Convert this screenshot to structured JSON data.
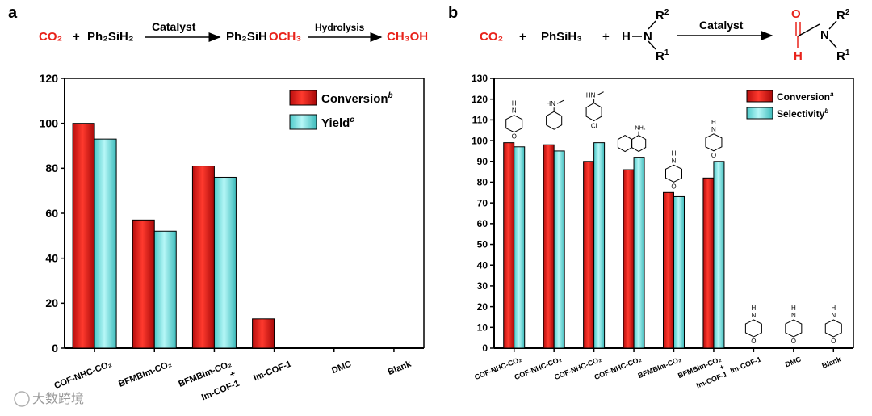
{
  "panels": {
    "a": {
      "letter": "a",
      "scheme": {
        "co2": "CO₂",
        "plus": "+",
        "silane": "Ph₂SiH₂",
        "arrow1_label": "Catalyst",
        "product_black": "Ph₂SiH",
        "product_red": "OCH₃",
        "arrow2_label": "Hydrolysis",
        "final": "CH₃OH"
      }
    },
    "b": {
      "letter": "b",
      "scheme": {
        "co2": "CO₂",
        "plus1": "+",
        "silane": "PhSiH₃",
        "plus2": "+",
        "amine_h": "H",
        "n": "N",
        "r1": "R",
        "r1_sup": "1",
        "r2": "R",
        "r2_sup": "2",
        "arrow_label": "Catalyst",
        "prod_o": "O",
        "prod_h": "H"
      }
    }
  },
  "structure_labels": {
    "nh": "H",
    "n": "N",
    "o": "O",
    "hn": "HN",
    "cl": "Cl",
    "nh2": "NH₂"
  },
  "watermark": "大数跨境",
  "colors": {
    "red_fill": "#e8231b",
    "cyan_fill": "#7be6e6",
    "scheme_red": "#e8231b"
  },
  "chart_data": [
    {
      "type": "bar",
      "panel": "a",
      "categories": [
        "COF-NHC-CO₂",
        "BFMBIm-CO₂",
        "BFMBIm-CO₂\n+\nIm-COF-1",
        "Im-COF-1",
        "DMC",
        "Blank"
      ],
      "series": [
        {
          "name": "Conversion",
          "sup": "b",
          "values": [
            100,
            57,
            81,
            13,
            0,
            0
          ]
        },
        {
          "name": "Yield",
          "sup": "c",
          "values": [
            93,
            52,
            76,
            0,
            0,
            0
          ]
        }
      ],
      "ylim": [
        0,
        120
      ],
      "yticks": [
        "0",
        "20",
        "40",
        "60",
        "80",
        "100",
        "120"
      ],
      "xlabel": "",
      "ylabel": "",
      "legend": "top-right"
    },
    {
      "type": "bar",
      "panel": "b",
      "categories": [
        "COF-NHC-CO₂",
        "COF-NHC-CO₂",
        "COF-NHC-CO₂",
        "COF-NHC-CO₂",
        "BFMBIm-CO₂",
        "BFMBIm-CO₂\n+\nIm-COF-1",
        "Im-COF-1",
        "DMC",
        "Blank"
      ],
      "substrates": [
        "morpholine",
        "N-methylaniline",
        "4-chloro-N-methylaniline",
        "1-naphthylamine",
        "morpholine",
        "morpholine",
        "morpholine",
        "morpholine",
        "morpholine"
      ],
      "series": [
        {
          "name": "Conversion",
          "sup": "a",
          "values": [
            99,
            98,
            90,
            86,
            75,
            82,
            0,
            0,
            0
          ]
        },
        {
          "name": "Selectivity",
          "sup": "b",
          "values": [
            97,
            95,
            99,
            92,
            73,
            90,
            0,
            0,
            0
          ]
        }
      ],
      "ylim": [
        0,
        130
      ],
      "yticks": [
        "0",
        "10",
        "20",
        "30",
        "40",
        "50",
        "60",
        "70",
        "80",
        "90",
        "100",
        "110",
        "120",
        "130"
      ],
      "xlabel": "",
      "ylabel": "",
      "legend": "top-right"
    }
  ]
}
